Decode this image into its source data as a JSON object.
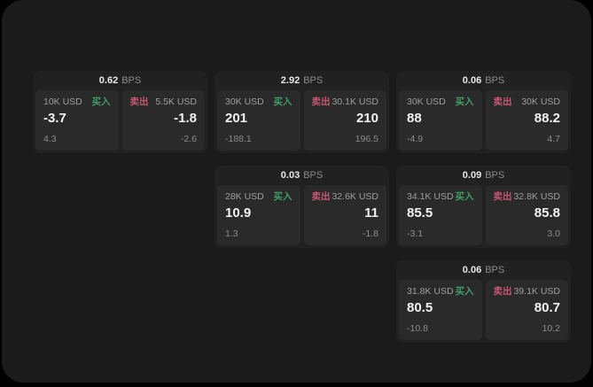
{
  "page": {
    "bps_unit": "BPS",
    "buy_label": "买入",
    "sell_label": "卖出"
  },
  "colors": {
    "buy": "#3f9e68",
    "sell": "#c75670"
  },
  "cards": [
    {
      "bps": "0.62",
      "buy_amount": "10K USD",
      "buy_value": "-3.7",
      "buy_delta": "4.3",
      "sell_amount": "5.5K USD",
      "sell_value": "-1.8",
      "sell_delta": "-2.6"
    },
    {
      "bps": "2.92",
      "buy_amount": "30K USD",
      "buy_value": "201",
      "buy_delta": "-188.1",
      "sell_amount": "30.1K USD",
      "sell_value": "210",
      "sell_delta": "196.5"
    },
    {
      "bps": "0.06",
      "buy_amount": "30K USD",
      "buy_value": "88",
      "buy_delta": "-4.9",
      "sell_amount": "30K USD",
      "sell_value": "88.2",
      "sell_delta": "4.7"
    },
    {
      "bps": "0.03",
      "buy_amount": "28K USD",
      "buy_value": "10.9",
      "buy_delta": "1.3",
      "sell_amount": "32.6K USD",
      "sell_value": "11",
      "sell_delta": "-1.8"
    },
    {
      "bps": "0.09",
      "buy_amount": "34.1K USD",
      "buy_value": "85.5",
      "buy_delta": "-3.1",
      "sell_amount": "32.8K USD",
      "sell_value": "85.8",
      "sell_delta": "3.0"
    },
    {
      "bps": "0.06",
      "buy_amount": "31.8K USD",
      "buy_value": "80.5",
      "buy_delta": "-10.8",
      "sell_amount": "39.1K USD",
      "sell_value": "80.7",
      "sell_delta": "10.2"
    }
  ]
}
